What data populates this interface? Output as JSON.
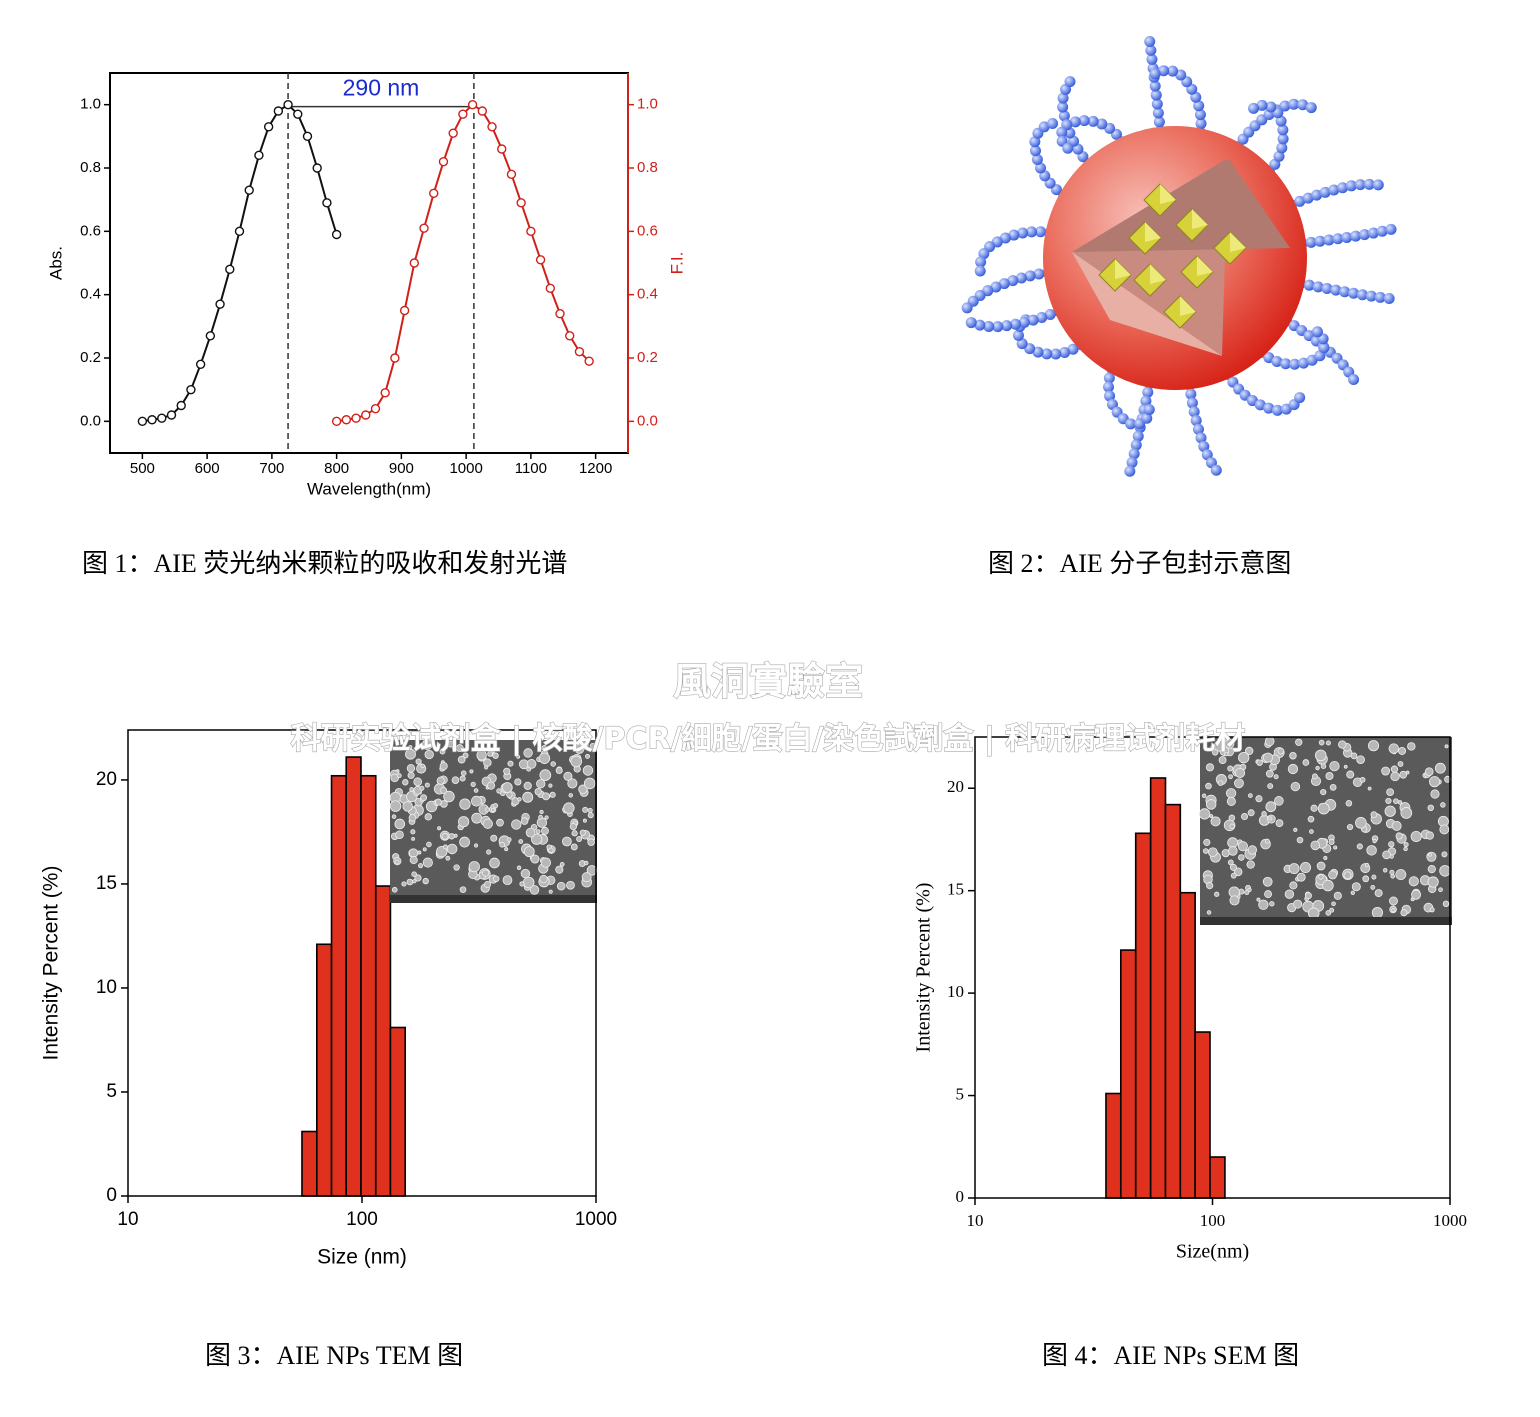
{
  "chart_data": [
    {
      "type": "line",
      "xlabel": "Wavelength(nm)",
      "ylabel": "Abs.",
      "y2label": "F.I.",
      "annotation": "290 nm",
      "xlim": [
        450,
        1250
      ],
      "ylim": [
        -0.1,
        1.1
      ],
      "y2lim": [
        -0.1,
        1.1
      ],
      "xticks": [
        500,
        600,
        700,
        800,
        900,
        1000,
        1100,
        1200
      ],
      "yticks": [
        {
          "value": 0,
          "label": "0.0"
        },
        0.2,
        0.4,
        0.6,
        0.8,
        {
          "value": 1,
          "label": "1.0"
        }
      ],
      "y2ticks": [
        {
          "value": 0,
          "label": "0.0"
        },
        0.2,
        0.4,
        0.6,
        0.8,
        {
          "value": 1,
          "label": "1.0"
        }
      ],
      "vlines": [
        725,
        1012
      ],
      "series": [
        {
          "color": "#111111",
          "axis": "y",
          "x": [
            500,
            515,
            530,
            545,
            560,
            575,
            590,
            605,
            620,
            635,
            650,
            665,
            680,
            695,
            710,
            725,
            740,
            755,
            770,
            785,
            800
          ],
          "values": [
            0,
            0.005,
            0.01,
            0.02,
            0.05,
            0.1,
            0.18,
            0.27,
            0.37,
            0.48,
            0.6,
            0.73,
            0.84,
            0.93,
            0.98,
            1.0,
            0.97,
            0.9,
            0.8,
            0.69,
            0.59
          ]
        },
        {
          "color": "#d0201a",
          "axis": "y2",
          "x": [
            800,
            815,
            830,
            845,
            860,
            875,
            890,
            905,
            920,
            935,
            950,
            965,
            980,
            995,
            1010,
            1025,
            1040,
            1055,
            1070,
            1085,
            1100,
            1115,
            1130,
            1145,
            1160,
            1175,
            1190
          ],
          "values": [
            0,
            0.005,
            0.01,
            0.02,
            0.04,
            0.09,
            0.2,
            0.35,
            0.5,
            0.61,
            0.72,
            0.82,
            0.91,
            0.97,
            1.0,
            0.98,
            0.93,
            0.86,
            0.78,
            0.69,
            0.6,
            0.51,
            0.42,
            0.34,
            0.27,
            0.22,
            0.19
          ]
        }
      ]
    },
    {
      "type": "histogram",
      "xscale": "log",
      "color": "#e0301e",
      "xlabel": "Size (nm)",
      "ylabel": "Intensity Percent (%)",
      "xlim": [
        10,
        1000
      ],
      "ylim": [
        0,
        22.4
      ],
      "xticks": [
        10,
        100,
        1000
      ],
      "yticks": [
        0,
        5,
        10,
        15,
        20
      ],
      "bins": [
        55.4,
        64.1,
        74.1,
        85.6,
        99,
        114.5,
        132.3,
        153
      ],
      "values": [
        3.1,
        12.1,
        20.2,
        21.1,
        20.2,
        14.9,
        8.1
      ]
    },
    {
      "type": "histogram",
      "xscale": "log",
      "color": "#e0301e",
      "xlabel": "Size(nm)",
      "ylabel": "Intensity Percent (%)",
      "xlim": [
        10,
        1000
      ],
      "ylim": [
        0,
        22.5
      ],
      "xticks": [
        10,
        100,
        1000
      ],
      "yticks": [
        0,
        5,
        10,
        15,
        20
      ],
      "bins": [
        35.6,
        41.1,
        47.5,
        54.9,
        63.4,
        73.2,
        84.5,
        97.6,
        112.8
      ],
      "values": [
        5.1,
        12.1,
        17.8,
        20.5,
        19.2,
        14.9,
        8.1,
        2.0
      ]
    }
  ],
  "captions": [
    "图 1：AIE 荧光纳米颗粒的吸收和发射光谱",
    "图 2：AIE 分子包封示意图",
    "图 3：AIE NPs TEM 图",
    "图 4：AIE NPs SEM 图"
  ],
  "watermark": {
    "title": "風洞實驗室",
    "subtitle": "科研实验试剂盒 | 核酸/PCR/細胞/蛋白/染色試劑盒 | 科研病理试剂耗材"
  }
}
